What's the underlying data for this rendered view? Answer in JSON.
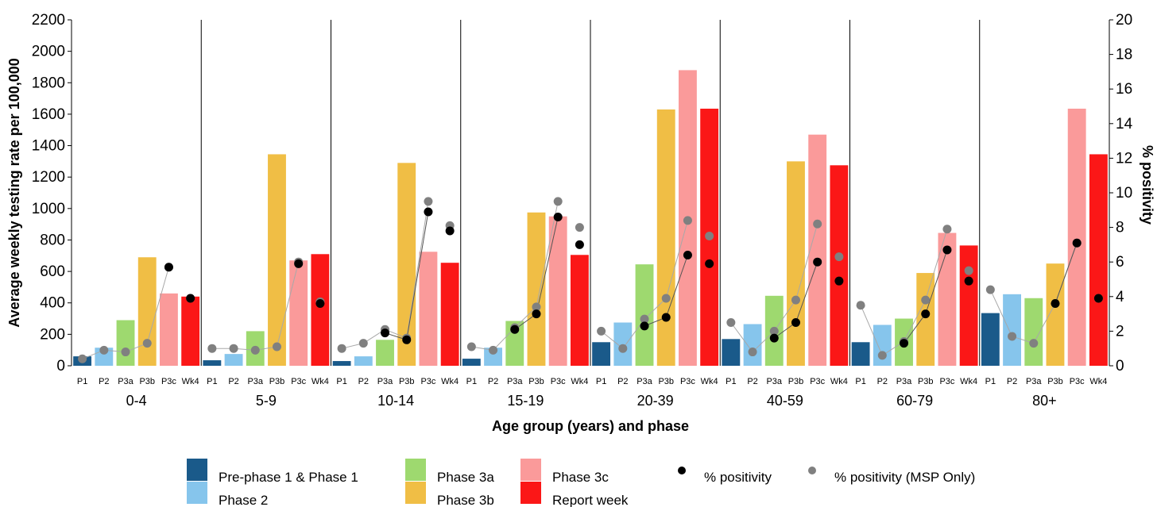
{
  "chart_data": {
    "type": "bar",
    "title": "",
    "xlabel": "Age group (years) and phase",
    "ylabel": "Average weekly testing rate per 100,000",
    "y2label": "% positivity",
    "ylim": [
      0,
      2200
    ],
    "y2lim": [
      0,
      20
    ],
    "yticks": [
      "0",
      "200",
      "400",
      "600",
      "800",
      "1000",
      "1200",
      "1400",
      "1600",
      "1800",
      "2000",
      "2200"
    ],
    "y2ticks": [
      "0",
      "2",
      "4",
      "6",
      "8",
      "10",
      "12",
      "14",
      "16",
      "18",
      "20"
    ],
    "groups": [
      "0-4",
      "5-9",
      "10-14",
      "15-19",
      "20-39",
      "40-59",
      "60-79",
      "80+"
    ],
    "phases": [
      "P1",
      "P2",
      "P3a",
      "P3b",
      "P3c",
      "Wk4"
    ],
    "phase_colors": [
      "#1a5a8a",
      "#86c5ec",
      "#9ed96f",
      "#f0be45",
      "#fa9a9a",
      "#fb1717"
    ],
    "series": [
      {
        "name": "Average weekly testing rate per 100,000",
        "axis": "left",
        "values": [
          [
            60,
            115,
            290,
            690,
            460,
            440
          ],
          [
            35,
            75,
            220,
            1345,
            670,
            710
          ],
          [
            30,
            60,
            165,
            1290,
            725,
            655
          ],
          [
            45,
            115,
            285,
            975,
            950,
            705
          ],
          [
            150,
            275,
            645,
            1630,
            1880,
            1635
          ],
          [
            170,
            265,
            445,
            1300,
            1470,
            1275
          ],
          [
            150,
            260,
            300,
            590,
            845,
            765
          ],
          [
            335,
            455,
            430,
            650,
            1635,
            1345
          ]
        ]
      },
      {
        "name": "% positivity",
        "axis": "right",
        "color": "#000000",
        "values": [
          [
            null,
            null,
            null,
            null,
            5.7,
            3.9
          ],
          [
            null,
            null,
            null,
            null,
            5.9,
            3.6
          ],
          [
            null,
            null,
            1.9,
            1.5,
            8.9,
            7.8
          ],
          [
            null,
            null,
            2.1,
            3.0,
            8.6,
            7.0
          ],
          [
            null,
            null,
            2.3,
            2.8,
            6.4,
            5.9
          ],
          [
            null,
            null,
            1.6,
            2.5,
            6.0,
            4.9
          ],
          [
            null,
            null,
            1.3,
            3.0,
            6.7,
            4.9
          ],
          [
            null,
            null,
            null,
            3.6,
            7.1,
            3.9
          ]
        ]
      },
      {
        "name": "% positivity (MSP Only)",
        "axis": "right",
        "color": "#808080",
        "values": [
          [
            0.4,
            0.9,
            0.8,
            1.3,
            5.7,
            3.9
          ],
          [
            1.0,
            1.0,
            0.9,
            1.1,
            6.0,
            3.7
          ],
          [
            1.0,
            1.3,
            2.1,
            1.6,
            9.5,
            8.1
          ],
          [
            1.1,
            0.9,
            2.2,
            3.4,
            9.5,
            8.0
          ],
          [
            2.0,
            1.0,
            2.7,
            3.9,
            8.4,
            7.5
          ],
          [
            2.5,
            0.8,
            2.0,
            3.8,
            8.2,
            6.3
          ],
          [
            3.5,
            0.6,
            1.4,
            3.8,
            7.9,
            5.5
          ],
          [
            4.4,
            1.7,
            1.3,
            3.6,
            7.1,
            3.9
          ]
        ]
      }
    ],
    "legend": {
      "position": "bottom",
      "items": [
        {
          "label": "Pre-phase 1 & Phase 1",
          "color": "#1a5a8a",
          "kind": "box"
        },
        {
          "label": "Phase 2",
          "color": "#86c5ec",
          "kind": "box"
        },
        {
          "label": "Phase 3a",
          "color": "#9ed96f",
          "kind": "box"
        },
        {
          "label": "Phase 3b",
          "color": "#f0be45",
          "kind": "box"
        },
        {
          "label": "Phase 3c",
          "color": "#fa9a9a",
          "kind": "box"
        },
        {
          "label": "Report week",
          "color": "#fb1717",
          "kind": "box"
        },
        {
          "label": "% positivity",
          "color": "#000000",
          "kind": "dot"
        },
        {
          "label": "% positivity (MSP Only)",
          "color": "#808080",
          "kind": "dot"
        }
      ]
    }
  }
}
